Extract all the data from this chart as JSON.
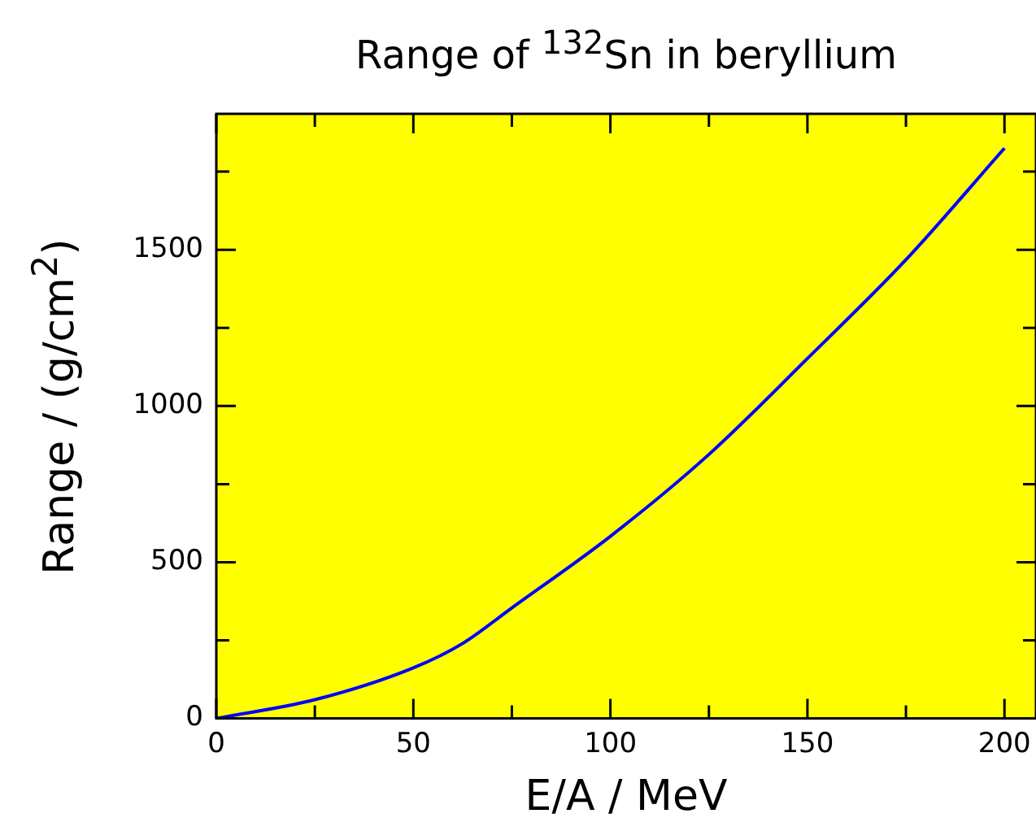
{
  "chart_data": {
    "type": "line",
    "title": "Range of $^{132}$Sn in beryllium",
    "xlabel": "E/A / MeV",
    "ylabel": "Range / (g/cm$^{2}$)",
    "x": [
      0,
      25,
      50,
      62.5,
      75,
      100,
      125,
      150,
      175,
      200
    ],
    "series": [
      {
        "color": "#0000ff",
        "values": [
          0,
          60,
          162,
          240,
          354,
          583,
          845,
          1152,
          1468,
          1825
        ]
      }
    ],
    "xlim": [
      0,
      208
    ],
    "xticks": [
      0,
      {
        "value": 25,
        "label": null
      },
      50,
      {
        "value": 75,
        "label": null
      },
      100,
      {
        "value": 125,
        "label": null
      },
      150,
      {
        "value": 175,
        "label": null
      },
      200
    ],
    "ylim": [
      0,
      1935
    ],
    "yticks": [
      0,
      {
        "value": 250,
        "label": null
      },
      500,
      {
        "value": 750,
        "label": null
      },
      1000,
      {
        "value": 1250,
        "label": null
      },
      1500,
      {
        "value": 1750,
        "label": null
      }
    ],
    "grid": false,
    "legend": false,
    "marker": "none",
    "line_style": "solid"
  }
}
